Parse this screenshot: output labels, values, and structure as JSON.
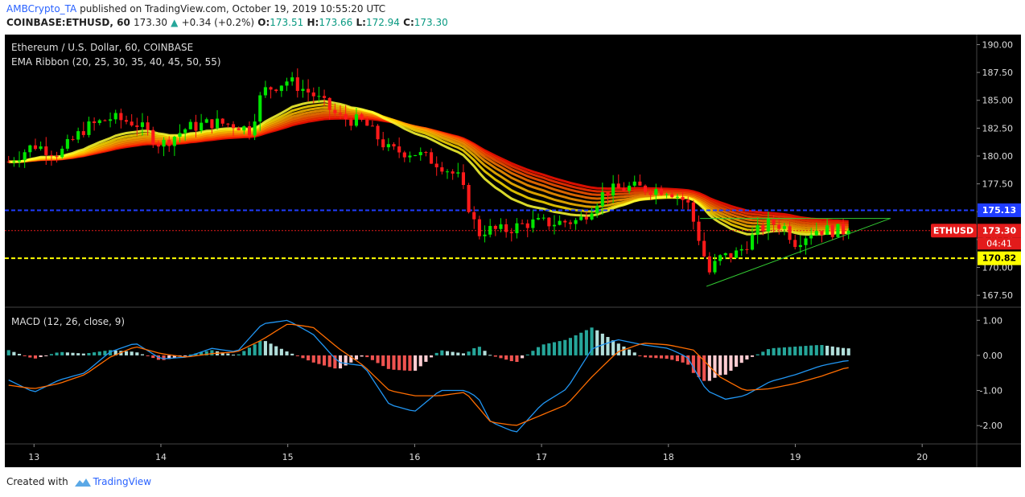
{
  "header": {
    "author": "AMBCrypto_TA",
    "published_text": "published on TradingView.com, October 19, 2019 10:55:20 UTC",
    "symbol": "COINBASE:ETHUSD, 60",
    "last": "173.30",
    "change": "+0.34 (+0.2%)",
    "o_label": "O:",
    "o": "173.51",
    "h_label": "H:",
    "h": "173.66",
    "l_label": "L:",
    "l": "172.94",
    "c_label": "C:",
    "c": "173.30"
  },
  "footer": {
    "created_with": "Created with",
    "brand": "TradingView"
  },
  "colors": {
    "background": "#000000",
    "up": "#00e600",
    "down": "#ff1a1a",
    "resistance": "#1f3dff",
    "support": "#ffff00",
    "last_price": "#e31b1b",
    "triangle": "#33cc33",
    "macd_line": "#2196f3",
    "signal_line": "#ff6d00",
    "hist_pos": "#26a69a",
    "hist_pos_light": "#b2dfdb",
    "hist_neg": "#ef5350",
    "hist_neg_light": "#ffcdd2"
  },
  "chart_data": [
    {
      "type": "candlestick",
      "title": "Ethereum / U.S. Dollar, 60, COINBASE",
      "indicator_label": "EMA Ribbon (20, 25, 30, 35, 40, 45, 50, 55)",
      "ylim": [
        166.5,
        190.9
      ],
      "y_ticks": [
        "167.50",
        "170.00",
        "172.50",
        "175.00",
        "177.50",
        "180.00",
        "182.50",
        "185.00",
        "187.50",
        "190.00"
      ],
      "x_ticks": [
        "13",
        "14",
        "15",
        "16",
        "17",
        "18",
        "19",
        "20"
      ],
      "x_tick_values": [
        13,
        14,
        15,
        16,
        17,
        18,
        19,
        20
      ],
      "xlim": [
        12.77,
        20.43
      ],
      "series_anchor_days": [
        12.8,
        13.0,
        13.2,
        13.4,
        13.6,
        13.8,
        14.0,
        14.2,
        14.4,
        14.6,
        14.7,
        14.8,
        15.0,
        15.2,
        15.4,
        15.6,
        15.8,
        16.0,
        16.2,
        16.35,
        16.5,
        16.56,
        16.7,
        16.9,
        17.1,
        17.3,
        17.5,
        17.7,
        17.9,
        18.0,
        18.15,
        18.25,
        18.32,
        18.4,
        18.55,
        18.7,
        18.8,
        18.9,
        19.0,
        19.15,
        19.3,
        19.4
      ],
      "series_anchor_prices": [
        179.5,
        181.0,
        180.2,
        182.5,
        183.4,
        183.0,
        181.0,
        182.5,
        183.0,
        182.8,
        182.3,
        185.8,
        186.8,
        185.5,
        183.5,
        183.0,
        180.5,
        180.3,
        179.3,
        178.0,
        173.0,
        173.4,
        173.3,
        174.0,
        174.0,
        174.2,
        176.8,
        177.2,
        177.0,
        177.0,
        175.8,
        172.3,
        169.5,
        170.8,
        171.3,
        173.2,
        174.0,
        173.8,
        172.3,
        173.4,
        173.3,
        173.3
      ],
      "candle_count": 158,
      "candle_start_day": 12.8,
      "candle_end_day": 19.42,
      "ribbon_lengths": [
        20,
        25,
        30,
        35,
        40,
        45,
        50,
        55
      ],
      "ribbon_colors": [
        "#ffff33",
        "#ffdd00",
        "#ffbb00",
        "#ff9900",
        "#ff7700",
        "#ff5500",
        "#ff3300",
        "#ff1100"
      ],
      "resistance": 175.13,
      "support": 170.82,
      "last_price": 173.3,
      "countdown": "04:41",
      "symbol_tag": "ETHUSD",
      "resistance_label": "175.13",
      "support_label": "170.82",
      "last_label": "173.30",
      "triangle": {
        "apex_day": 19.75,
        "apex_price": 174.4,
        "top_start_day": 18.25,
        "bottom_start_day": 18.3,
        "bottom_start_price": 168.3
      }
    },
    {
      "type": "macd",
      "title": "MACD (12, 26, close, 9)",
      "ylim": [
        -2.5,
        1.35
      ],
      "y_ticks": [
        "-2.00",
        "-1.00",
        "0.00",
        "1.00"
      ],
      "macd_anchor_days": [
        12.8,
        13.0,
        13.2,
        13.4,
        13.6,
        13.8,
        14.0,
        14.2,
        14.4,
        14.6,
        14.8,
        15.0,
        15.2,
        15.4,
        15.6,
        15.8,
        16.0,
        16.2,
        16.4,
        16.5,
        16.6,
        16.8,
        17.0,
        17.2,
        17.4,
        17.6,
        17.8,
        18.0,
        18.15,
        18.3,
        18.45,
        18.6,
        18.8,
        19.0,
        19.2,
        19.4
      ],
      "macd_anchor_values": [
        -0.7,
        -1.05,
        -0.7,
        -0.5,
        0.1,
        0.35,
        -0.1,
        -0.05,
        0.2,
        0.1,
        0.9,
        1.0,
        0.6,
        -0.2,
        -0.3,
        -1.4,
        -1.6,
        -1.0,
        -1.0,
        -1.2,
        -1.9,
        -2.2,
        -1.4,
        -0.95,
        0.2,
        0.45,
        0.3,
        0.2,
        -0.05,
        -1.0,
        -1.25,
        -1.15,
        -0.75,
        -0.55,
        -0.3,
        -0.15
      ],
      "signal_anchor_days": [
        12.8,
        13.0,
        13.2,
        13.4,
        13.6,
        13.8,
        14.0,
        14.2,
        14.4,
        14.6,
        14.8,
        15.0,
        15.2,
        15.4,
        15.6,
        15.8,
        16.0,
        16.2,
        16.4,
        16.6,
        16.8,
        17.0,
        17.2,
        17.4,
        17.6,
        17.8,
        18.0,
        18.2,
        18.4,
        18.6,
        18.8,
        19.0,
        19.2,
        19.4
      ],
      "signal_anchor_values": [
        -0.85,
        -0.95,
        -0.8,
        -0.55,
        -0.05,
        0.25,
        0.05,
        -0.05,
        0.05,
        0.1,
        0.45,
        0.9,
        0.8,
        0.2,
        -0.3,
        -1.0,
        -1.15,
        -1.15,
        -1.05,
        -1.9,
        -2.0,
        -1.7,
        -1.4,
        -0.6,
        0.1,
        0.35,
        0.3,
        0.15,
        -0.6,
        -1.0,
        -0.95,
        -0.8,
        -0.6,
        -0.35
      ]
    }
  ]
}
